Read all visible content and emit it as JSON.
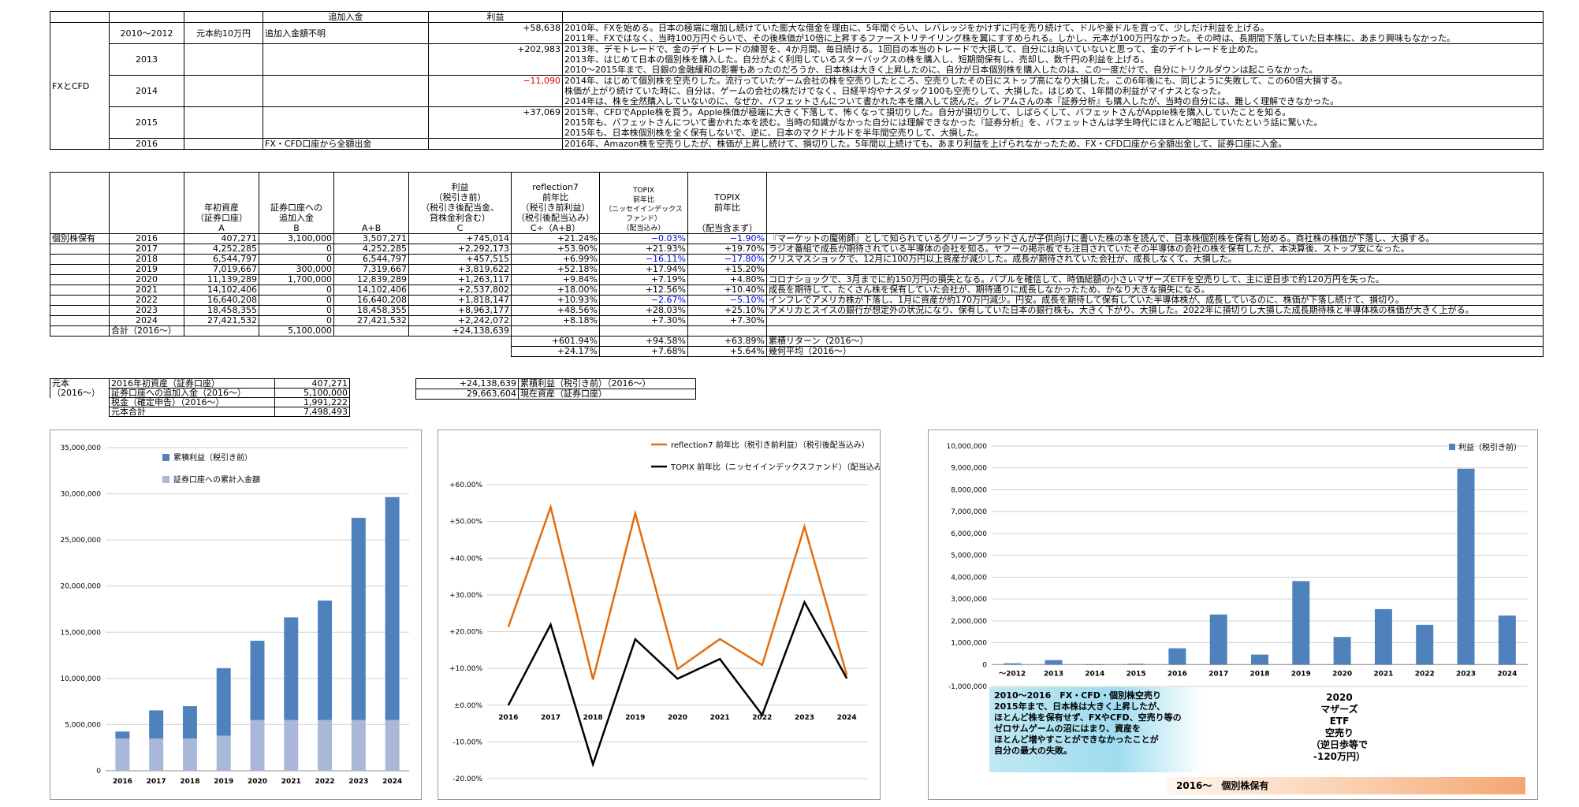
{
  "fx_table": {
    "header": {
      "col_add": "追加入金",
      "col_profit": "利益"
    },
    "row_label": "FXとCFD",
    "rows": [
      {
        "year": "2010〜2012",
        "capital": "元本約10万円",
        "add": "追加入金額不明",
        "profit": "+58,638",
        "profit_color": "black",
        "notes": [
          "2010年、FXを始める。日本の極端に増加し続けていた膨大な借金を理由に、5年間ぐらい、レバレッジをかけずに円を売り続けて、ドルや豪ドルを買って、少しだけ利益を上げる。",
          "2011年、FXではなく、当時100万円ぐらいで、その後株価が10倍に上昇するファーストリテイリング株を翼にすすめられる。しかし、元本が100万円なかった。その時は、長期間下落していた日本株に、あまり興味もなかった。"
        ]
      },
      {
        "year": "2013",
        "capital": "",
        "add": "",
        "profit": "+202,983",
        "profit_color": "black",
        "notes": [
          "2013年、デモトレードで、金のデイトレードの練習を、4か月間、毎日続ける。1回目の本当のトレードで大損して、自分には向いていないと思って、金のデイトレードを止めた。",
          "2013年、はじめて日本の個別株を購入した。自分がよく利用しているスターバックスの株を購入し、短期間保有し、売却し、数千円の利益を上げる。",
          "2010〜2015年まで、日銀の金融緩和の影響もあったのだろうか、日本株は大きく上昇したのに、自分が日本個別株を購入したのは、この一度だけで、自分にトリクルダウンは起こらなかった。"
        ]
      },
      {
        "year": "2014",
        "capital": "",
        "add": "",
        "profit": "−11,090",
        "profit_color": "red",
        "notes": [
          "2014年、はじめて個別株を空売りした。流行っていたゲーム会社の株を空売りしたところ、空売りしたその日にストップ高になり大損した。この6年後にも、同じように失敗して、この60倍大損する。",
          "株価が上がり続けていた時に、自分は、ゲームの会社の株だけでなく、日経平均やナスダック100も空売りして、大損した。はじめて、1年間の利益がマイナスとなった。",
          "2014年は、株を全然購入していないのに、なぜか、バフェットさんについて書かれた本を購入して読んだ。グレアムさんの本『証券分析』も購入したが、当時の自分には、難しく理解できなかった。"
        ]
      },
      {
        "year": "2015",
        "capital": "",
        "add": "",
        "profit": "+37,069",
        "profit_color": "black",
        "notes": [
          "2015年、CFDでApple株を買う。Apple株価が極端に大きく下落して、怖くなって損切りした。自分が損切りして、しばらくして、バフェットさんがApple株を購入していたことを知る。",
          "2015年も、バフェットさんについて書かれた本を読む。当時の知識がなかった自分には理解できなかった『証券分析』を、バフェットさんは学生時代にほとんど暗記していたという話に驚いた。",
          "2015年も、日本株個別株を全く保有しないで、逆に、日本のマクドナルドを半年間空売りして、大損した。"
        ]
      },
      {
        "year": "2016",
        "capital": "",
        "add": "FX・CFD口座から全額出金",
        "profit": "",
        "profit_color": "black",
        "notes": [
          "2016年、Amazon株を空売りしたが、株価が上昇し続けて、損切りした。5年間以上続けても、あまり利益を上げられなかったため、FX・CFD口座から全額出金して、証券口座に入金。"
        ]
      }
    ]
  },
  "stock_table": {
    "headers": {
      "a": "年初資産\n（証券口座）\nA",
      "b": "証券口座への\n追加入金\nB",
      "ab": "A+B",
      "c": "利益\n（税引き前）\n（税引き後配当金、\n貸株金利含む）\nC",
      "r7": "reflection7\n前年比\n（税引き前利益）\n（税引後配当込み）\nC÷（A+B）",
      "topix1": "TOPIX\n前年比\n（ニッセイインデックスファンド）\n（配当込み）",
      "topix2": "TOPIX\n前年比\n\n（配当含まず）"
    },
    "row_label": "個別株保有",
    "rows": [
      {
        "year": "2016",
        "a": "407,271",
        "b": "3,100,000",
        "ab": "3,507,271",
        "c": "+745,014",
        "r7": "+21.24%",
        "t1": "−0.03%",
        "t1c": "blue",
        "t2": "−1.90%",
        "t2c": "blue",
        "note": "『マーケットの魔術師』として知られているグリーンブラッドさんが子供向けに書いた株の本を読んで、日本株個別株を保有し始める。商社株の株価が下落し、大損する。"
      },
      {
        "year": "2017",
        "a": "4,252,285",
        "b": "0",
        "ab": "4,252,285",
        "c": "+2,292,173",
        "r7": "+53.90%",
        "t1": "+21.93%",
        "t1c": "black",
        "t2": "+19.70%",
        "t2c": "black",
        "note": "ラジオ番組で成長が期待されている半導体の会社を知る。ヤフーの掲示板でも注目されていたその半導体の会社の株を保有したが、本決算後、ストップ安になった。"
      },
      {
        "year": "2018",
        "a": "6,544,797",
        "b": "0",
        "ab": "6,544,797",
        "c": "+457,515",
        "r7": "+6.99%",
        "t1": "−16.11%",
        "t1c": "blue",
        "t2": "−17.80%",
        "t2c": "blue",
        "note": "クリスマスショックで、12月に100万円以上資産が減少した。成長が期待されていた会社が、成長しなくて、大損した。"
      },
      {
        "year": "2019",
        "a": "7,019,667",
        "b": "300,000",
        "ab": "7,319,667",
        "c": "+3,819,622",
        "r7": "+52.18%",
        "t1": "+17.94%",
        "t1c": "black",
        "t2": "+15.20%",
        "t2c": "black",
        "note": ""
      },
      {
        "year": "2020",
        "a": "11,139,289",
        "b": "1,700,000",
        "ab": "12,839,289",
        "c": "+1,263,117",
        "r7": "+9.84%",
        "t1": "+7.19%",
        "t1c": "black",
        "t2": "+4.80%",
        "t2c": "black",
        "note": "コロナショックで、3月までに約150万円の損失となる。バブルを確信して、時価総額の小さいマザーズETFを空売りして、主に逆日歩で約120万円を失った。"
      },
      {
        "year": "2021",
        "a": "14,102,406",
        "b": "0",
        "ab": "14,102,406",
        "c": "+2,537,802",
        "r7": "+18.00%",
        "t1": "+12.56%",
        "t1c": "black",
        "t2": "+10.40%",
        "t2c": "black",
        "note": "成長を期待して、たくさん株を保有していた会社が、期待通りに成長しなかったため、かなり大きな損失になる。"
      },
      {
        "year": "2022",
        "a": "16,640,208",
        "b": "0",
        "ab": "16,640,208",
        "c": "+1,818,147",
        "r7": "+10.93%",
        "t1": "−2.67%",
        "t1c": "blue",
        "t2": "−5.10%",
        "t2c": "blue",
        "note": "インフレでアメリカ株が下落し、1月に資産が約170万円減少。円安。成長を期待して保有していた半導体株が、成長しているのに、株価が下落し続けて、損切り。"
      },
      {
        "year": "2023",
        "a": "18,458,355",
        "b": "0",
        "ab": "18,458,355",
        "c": "+8,963,177",
        "r7": "+48.56%",
        "t1": "+28.03%",
        "t1c": "black",
        "t2": "+25.10%",
        "t2c": "black",
        "note": "アメリカとスイスの銀行が想定外の状況になり、保有していた日本の銀行株も、大きく下がり、大損した。2022年に損切りし大損した成長期待株と半導体株の株価が大きく上がる。"
      },
      {
        "year": "2024",
        "a": "27,421,532",
        "b": "0",
        "ab": "27,421,532",
        "c": "+2,242,072",
        "r7": "+8.18%",
        "t1": "+7.30%",
        "t1c": "black",
        "t2": "+7.30%",
        "t2c": "black",
        "note": ""
      }
    ],
    "total": {
      "label": "合計（2016〜）",
      "b": "5,100,000",
      "c": "+24,138,639"
    },
    "cumulative": {
      "r7": "+601.94%",
      "t1": "+94.58%",
      "t2": "+63.89%",
      "label": "累積リターン（2016〜）"
    },
    "geomean": {
      "r7": "+24.17%",
      "t1": "+7.68%",
      "t2": "+5.64%",
      "label": "幾何平均（2016〜）"
    }
  },
  "principal_table": {
    "label1": "元本",
    "label2": "（2016〜）",
    "rows": [
      {
        "k": "2016年初資産（証券口座）",
        "v": "407,271"
      },
      {
        "k": "証券口座への追加入金（2016〜）",
        "v": "5,100,000"
      },
      {
        "k": "税金（確定申告）（2016〜）",
        "v": "1,991,222"
      },
      {
        "k": "元本合計",
        "v": "7,498,493"
      }
    ]
  },
  "summary_table": {
    "rows": [
      {
        "v": "+24,138,639",
        "k": "累積利益（税引き前）（2016〜）"
      },
      {
        "v": "29,663,604",
        "k": "現在資産（証券口座）"
      }
    ]
  },
  "chart_data": [
    {
      "type": "bar",
      "stacked": true,
      "categories": [
        "2016",
        "2017",
        "2018",
        "2019",
        "2020",
        "2021",
        "2022",
        "2023",
        "2024"
      ],
      "series": [
        {
          "name": "証券口座への累計入金額",
          "color": "#a9b8d9",
          "values": [
            3500000,
            3500000,
            3500000,
            3800000,
            5500000,
            5500000,
            5500000,
            5500000,
            5500000
          ]
        },
        {
          "name": "累積利益（税引き前）",
          "color": "#4f81bd",
          "values": [
            745014,
            3037187,
            3494702,
            7314324,
            8577441,
            11115243,
            12933390,
            21896567,
            24138639
          ]
        }
      ],
      "ylim": [
        0,
        35000000
      ],
      "yticks": [
        "0",
        "5,000,000",
        "10,000,000",
        "15,000,000",
        "20,000,000",
        "25,000,000",
        "30,000,000",
        "35,000,000"
      ],
      "legend_position": "top-left"
    },
    {
      "type": "line",
      "categories": [
        "2016",
        "2017",
        "2018",
        "2019",
        "2020",
        "2021",
        "2022",
        "2023",
        "2024"
      ],
      "series": [
        {
          "name": "reflection7 前年比（税引き前利益）（税引後配当込み）",
          "color": "#e46c0a",
          "values": [
            21.24,
            53.9,
            6.99,
            52.18,
            9.84,
            18.0,
            10.93,
            48.56,
            8.18
          ]
        },
        {
          "name": "TOPIX 前年比（ニッセイインデックスファンド）（配当込み）",
          "color": "#000000",
          "values": [
            -0.03,
            21.93,
            -16.11,
            17.94,
            7.19,
            12.56,
            -2.67,
            28.03,
            7.3
          ]
        }
      ],
      "ylim": [
        -20,
        60
      ],
      "yticks": [
        "-20.00%",
        "-10.00%",
        "±0.00%",
        "+10.00%",
        "+20.00%",
        "+30.00%",
        "+40.00%",
        "+50.00%",
        "+60.00%"
      ],
      "legend_position": "top-right"
    },
    {
      "type": "bar",
      "categories": [
        "〜2012",
        "2013",
        "2014",
        "2015",
        "2016",
        "2017",
        "2018",
        "2019",
        "2020",
        "2021",
        "2022",
        "2023",
        "2024"
      ],
      "series": [
        {
          "name": "利益（税引き前）",
          "color": "#4f81bd",
          "values": [
            58638,
            202983,
            -11090,
            37069,
            745014,
            2292173,
            457515,
            3819622,
            1263117,
            2537802,
            1818147,
            8963177,
            2242072
          ]
        }
      ],
      "ylim": [
        -1000000,
        10000000
      ],
      "yticks": [
        "-1,000,000",
        "0",
        "1,000,000",
        "2,000,000",
        "3,000,000",
        "4,000,000",
        "5,000,000",
        "6,000,000",
        "7,000,000",
        "8,000,000",
        "9,000,000",
        "10,000,000"
      ],
      "legend_position": "top-right"
    }
  ],
  "annotation": {
    "lines": [
      "2010〜2016　FX・CFD・個別株空売り",
      "2015年まで、日本株は大きく上昇したが、",
      "ほとんど株を保有せず、FXやCFD、空売り等の",
      "ゼロサムゲームの沼にはまり、資産を",
      "ほとんど増やすことができなかったことが",
      "自分の最大の失敗。"
    ],
    "mothers": [
      "2020",
      "マザーズ",
      "ETF",
      "空売り",
      "（逆日歩等で",
      "-120万円）"
    ],
    "band": "2016〜　個別株保有"
  }
}
